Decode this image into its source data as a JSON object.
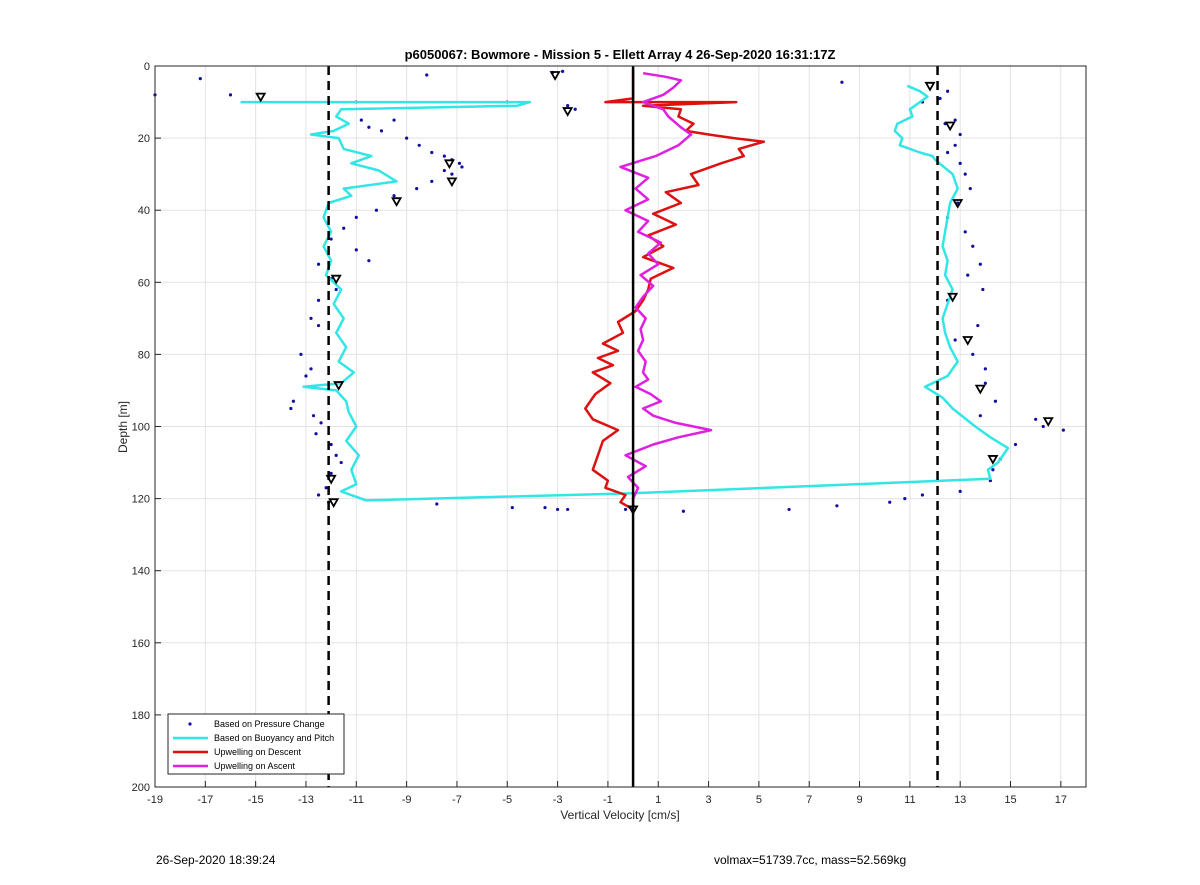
{
  "footer": {
    "timestamp": "26-Sep-2020 18:39:24",
    "info": "volmax=51739.7cc, mass=52.569kg"
  },
  "chart_data": {
    "type": "scatter",
    "title": "p6050067: Bowmore - Mission 5 - Ellett Array 4 26-Sep-2020 16:31:17Z",
    "xlabel": "Vertical Velocity [cm/s]",
    "ylabel": "Depth [m]",
    "xlim": [
      -19,
      18
    ],
    "ylim": [
      0,
      200
    ],
    "y_reversed": true,
    "grid": true,
    "xticks": [
      -19,
      -17,
      -15,
      -13,
      -11,
      -9,
      -7,
      -5,
      -3,
      -1,
      1,
      3,
      5,
      7,
      9,
      11,
      13,
      15,
      17
    ],
    "yticks": [
      0,
      20,
      40,
      60,
      80,
      100,
      120,
      140,
      160,
      180,
      200
    ],
    "legend_position": "bottom-left",
    "legend": [
      {
        "label": "Based on Pressure Change",
        "color": "#1010a0",
        "style": "dots"
      },
      {
        "label": "Based on Buoyancy and Pitch",
        "color": "#33e6e6",
        "style": "line"
      },
      {
        "label": "Upwelling on Descent",
        "color": "#dd1111",
        "style": "line"
      },
      {
        "label": "Upwelling on Ascent",
        "color": "#e020e0",
        "style": "line"
      }
    ],
    "reference_lines": [
      {
        "x": -12.1,
        "style": "dashed",
        "color": "#000000"
      },
      {
        "x": 12.1,
        "style": "dashed",
        "color": "#000000"
      },
      {
        "x": 0.0,
        "style": "solid",
        "color": "#000000"
      }
    ],
    "series": [
      {
        "name": "Based on Pressure Change",
        "color": "#1010a0",
        "style": "dots",
        "points": [
          [
            -19,
            8
          ],
          [
            -17.2,
            3.5
          ],
          [
            -16,
            8
          ],
          [
            -8.2,
            2.5
          ],
          [
            -3.2,
            1.8
          ],
          [
            -2.8,
            1.5
          ],
          [
            -2.6,
            11
          ],
          [
            -2.3,
            12
          ],
          [
            -5,
            10
          ],
          [
            -11,
            10
          ],
          [
            -10.8,
            15
          ],
          [
            -10.5,
            17
          ],
          [
            -10,
            18
          ],
          [
            -9.5,
            15
          ],
          [
            -9,
            20
          ],
          [
            -8.5,
            22
          ],
          [
            -8,
            24
          ],
          [
            -7.5,
            25
          ],
          [
            -7.2,
            26
          ],
          [
            -6.9,
            27
          ],
          [
            -7.5,
            29
          ],
          [
            -8,
            32
          ],
          [
            -7.2,
            30
          ],
          [
            -6.8,
            28
          ],
          [
            -8.6,
            34
          ],
          [
            -9.5,
            36
          ],
          [
            -10.2,
            40
          ],
          [
            -11,
            42
          ],
          [
            -11.5,
            45
          ],
          [
            -12,
            48
          ],
          [
            -11,
            51
          ],
          [
            -10.5,
            54
          ],
          [
            -12.5,
            55
          ],
          [
            -12,
            59
          ],
          [
            -11.8,
            62
          ],
          [
            -12.5,
            65
          ],
          [
            -12.8,
            70
          ],
          [
            -12.5,
            72
          ],
          [
            -13.2,
            80
          ],
          [
            -12.8,
            84
          ],
          [
            -13,
            86
          ],
          [
            -13.5,
            93
          ],
          [
            -13.6,
            95
          ],
          [
            -12.7,
            97
          ],
          [
            -12.4,
            99
          ],
          [
            -12.6,
            102
          ],
          [
            -12,
            105
          ],
          [
            -11.8,
            108
          ],
          [
            -11.6,
            110
          ],
          [
            -12,
            113
          ],
          [
            -12.2,
            117
          ],
          [
            -12.5,
            119
          ],
          [
            -12.1,
            121
          ],
          [
            -7.8,
            121.5
          ],
          [
            -3.5,
            122.5
          ],
          [
            -3,
            123
          ],
          [
            -2.6,
            123
          ],
          [
            -4.8,
            122.5
          ],
          [
            -0.3,
            123
          ],
          [
            2,
            123.5
          ],
          [
            6.2,
            123
          ],
          [
            8.1,
            122
          ],
          [
            10.2,
            121
          ],
          [
            10.8,
            120
          ],
          [
            11.5,
            119
          ],
          [
            8.3,
            4.5
          ],
          [
            11.5,
            10
          ],
          [
            12.2,
            9
          ],
          [
            12.5,
            7
          ],
          [
            12.8,
            15
          ],
          [
            12.4,
            16
          ],
          [
            13,
            19
          ],
          [
            12.8,
            22
          ],
          [
            12.5,
            24
          ],
          [
            13,
            27
          ],
          [
            13.2,
            30
          ],
          [
            13.4,
            34
          ],
          [
            12.9,
            38
          ],
          [
            12.5,
            42
          ],
          [
            13.2,
            46
          ],
          [
            13.5,
            50
          ],
          [
            13.8,
            55
          ],
          [
            13.3,
            58
          ],
          [
            13.9,
            62
          ],
          [
            12.5,
            65
          ],
          [
            13.7,
            72
          ],
          [
            12.8,
            76
          ],
          [
            13.5,
            80
          ],
          [
            14,
            84
          ],
          [
            14,
            88
          ],
          [
            14.4,
            93
          ],
          [
            13.8,
            97
          ],
          [
            16,
            98
          ],
          [
            16.3,
            100
          ],
          [
            17.1,
            101
          ],
          [
            15.2,
            105
          ],
          [
            14.6,
            109
          ],
          [
            14.3,
            112
          ],
          [
            14.2,
            115
          ],
          [
            13,
            118
          ]
        ]
      },
      {
        "name": "Based on Buoyancy and Pitch",
        "color": "#33e6e6",
        "style": "line",
        "points": [
          [
            -15.6,
            10
          ],
          [
            -4.1,
            10
          ],
          [
            -4.6,
            11
          ],
          [
            -11.6,
            12
          ],
          [
            -11.8,
            14
          ],
          [
            -11.3,
            16
          ],
          [
            -11.9,
            18
          ],
          [
            -12.8,
            19
          ],
          [
            -11.7,
            20
          ],
          [
            -11.5,
            23
          ],
          [
            -10.4,
            25
          ],
          [
            -11.2,
            27
          ],
          [
            -10.1,
            29
          ],
          [
            -9.4,
            32
          ],
          [
            -11.5,
            34
          ],
          [
            -11.2,
            36
          ],
          [
            -12.1,
            38
          ],
          [
            -12.3,
            42
          ],
          [
            -12.0,
            46
          ],
          [
            -12.3,
            50
          ],
          [
            -12.0,
            54
          ],
          [
            -12.2,
            58
          ],
          [
            -11.6,
            62
          ],
          [
            -11.9,
            66
          ],
          [
            -11.5,
            70
          ],
          [
            -11.8,
            74
          ],
          [
            -11.4,
            78
          ],
          [
            -11.7,
            82
          ],
          [
            -11.1,
            85
          ],
          [
            -11.6,
            88
          ],
          [
            -13.1,
            89
          ],
          [
            -11.8,
            90
          ],
          [
            -11.4,
            93
          ],
          [
            -11.3,
            96
          ],
          [
            -11.0,
            100
          ],
          [
            -11.4,
            104
          ],
          [
            -10.9,
            108
          ],
          [
            -11.2,
            112
          ],
          [
            -11.0,
            116
          ],
          [
            -11.6,
            118
          ],
          [
            -10.6,
            120.5
          ],
          [
            0,
            118.5
          ],
          [
            14.2,
            114.5
          ],
          [
            14.1,
            112
          ],
          [
            14.5,
            110
          ],
          [
            14.9,
            106
          ],
          [
            14.2,
            103
          ],
          [
            13.6,
            100
          ],
          [
            12.7,
            95
          ],
          [
            12.3,
            92
          ],
          [
            11.6,
            89
          ],
          [
            12.5,
            86
          ],
          [
            12.9,
            82
          ],
          [
            12.6,
            78
          ],
          [
            12.4,
            74
          ],
          [
            12.3,
            70
          ],
          [
            12.5,
            66
          ],
          [
            12.7,
            62
          ],
          [
            12.4,
            58
          ],
          [
            12.5,
            54
          ],
          [
            12.3,
            50
          ],
          [
            12.4,
            46
          ],
          [
            12.5,
            42
          ],
          [
            12.6,
            38
          ],
          [
            12.9,
            34
          ],
          [
            12.7,
            30
          ],
          [
            12.0,
            26
          ],
          [
            11.9,
            25
          ],
          [
            11.4,
            24
          ],
          [
            10.6,
            22
          ],
          [
            10.7,
            20
          ],
          [
            10.4,
            18
          ],
          [
            10.5,
            16
          ],
          [
            11.1,
            14
          ],
          [
            11.0,
            12
          ],
          [
            11.4,
            10
          ],
          [
            11.7,
            8.5
          ],
          [
            11.4,
            7
          ],
          [
            10.9,
            5.5
          ]
        ]
      },
      {
        "name": "Upwelling on Descent",
        "color": "#dd1111",
        "style": "line",
        "points": [
          [
            0,
            1
          ],
          [
            0,
            9
          ],
          [
            -1.1,
            10
          ],
          [
            4.1,
            10
          ],
          [
            0.4,
            11
          ],
          [
            1.9,
            12
          ],
          [
            1.8,
            14
          ],
          [
            2.4,
            16
          ],
          [
            2.1,
            18
          ],
          [
            3,
            19
          ],
          [
            4,
            20
          ],
          [
            5.2,
            21
          ],
          [
            4.2,
            23
          ],
          [
            4.4,
            25
          ],
          [
            3.5,
            27
          ],
          [
            2.3,
            30
          ],
          [
            2.6,
            33
          ],
          [
            1.3,
            35
          ],
          [
            1.9,
            38
          ],
          [
            0.8,
            41
          ],
          [
            1.7,
            44
          ],
          [
            0.6,
            47
          ],
          [
            1.2,
            50
          ],
          [
            0.4,
            53
          ],
          [
            1.6,
            56
          ],
          [
            0.7,
            59
          ],
          [
            0.6,
            62
          ],
          [
            0.4,
            65
          ],
          [
            0.1,
            68
          ],
          [
            -0.6,
            71
          ],
          [
            -0.4,
            74
          ],
          [
            -1.2,
            77
          ],
          [
            -0.6,
            79
          ],
          [
            -1.4,
            81
          ],
          [
            -0.8,
            83
          ],
          [
            -1.6,
            85
          ],
          [
            -0.9,
            88
          ],
          [
            -1.5,
            91
          ],
          [
            -1.9,
            95
          ],
          [
            -1.6,
            98
          ],
          [
            -0.6,
            101
          ],
          [
            -1.2,
            104
          ],
          [
            -1.4,
            108
          ],
          [
            -1.6,
            112
          ],
          [
            -1.0,
            115
          ],
          [
            -1.1,
            117
          ],
          [
            -0.3,
            119
          ],
          [
            -0.5,
            121
          ],
          [
            0,
            123
          ]
        ]
      },
      {
        "name": "Upwelling on Ascent",
        "color": "#e020e0",
        "style": "line",
        "points": [
          [
            0,
            123
          ],
          [
            0,
            120
          ],
          [
            0.2,
            117
          ],
          [
            -0.2,
            114
          ],
          [
            0.5,
            111
          ],
          [
            -0.3,
            108
          ],
          [
            0.8,
            105
          ],
          [
            1.8,
            103
          ],
          [
            3.1,
            101
          ],
          [
            1.7,
            99
          ],
          [
            0.8,
            97
          ],
          [
            0.4,
            95
          ],
          [
            1.1,
            93
          ],
          [
            0.7,
            91
          ],
          [
            0.1,
            89
          ],
          [
            0.6,
            87
          ],
          [
            0.4,
            85
          ],
          [
            0.5,
            82
          ],
          [
            0.2,
            79
          ],
          [
            0.4,
            76
          ],
          [
            0.3,
            73
          ],
          [
            0.5,
            70
          ],
          [
            0.1,
            67
          ],
          [
            0.4,
            64
          ],
          [
            0.8,
            61
          ],
          [
            0.3,
            58
          ],
          [
            1,
            55
          ],
          [
            0.6,
            52
          ],
          [
            1.1,
            49
          ],
          [
            0.2,
            46
          ],
          [
            0.6,
            43
          ],
          [
            -0.3,
            40
          ],
          [
            0.6,
            37
          ],
          [
            0.1,
            34
          ],
          [
            0.6,
            31
          ],
          [
            -0.5,
            28
          ],
          [
            0.9,
            25
          ],
          [
            1.8,
            22
          ],
          [
            2.3,
            19
          ],
          [
            1.9,
            17
          ],
          [
            1.4,
            14
          ],
          [
            1.2,
            12
          ],
          [
            0.4,
            10
          ],
          [
            1.2,
            8
          ],
          [
            1.6,
            6
          ],
          [
            1.9,
            4
          ],
          [
            1.3,
            3
          ],
          [
            0.4,
            2
          ]
        ]
      },
      {
        "name": "Markers",
        "color": "#000000",
        "style": "triangles",
        "points": [
          [
            -14.8,
            8.5
          ],
          [
            -3.1,
            2.5
          ],
          [
            -2.6,
            12.5
          ],
          [
            -7.3,
            27
          ],
          [
            -7.2,
            32
          ],
          [
            -9.4,
            37.5
          ],
          [
            -11.8,
            59
          ],
          [
            -11.7,
            88.5
          ],
          [
            -12.0,
            114.5
          ],
          [
            -11.9,
            121
          ],
          [
            11.8,
            5.5
          ],
          [
            12.6,
            16.5
          ],
          [
            12.9,
            38
          ],
          [
            12.7,
            64
          ],
          [
            13.3,
            76
          ],
          [
            13.8,
            89.5
          ],
          [
            16.5,
            98.5
          ],
          [
            14.3,
            109
          ],
          [
            0,
            123
          ]
        ]
      }
    ]
  }
}
